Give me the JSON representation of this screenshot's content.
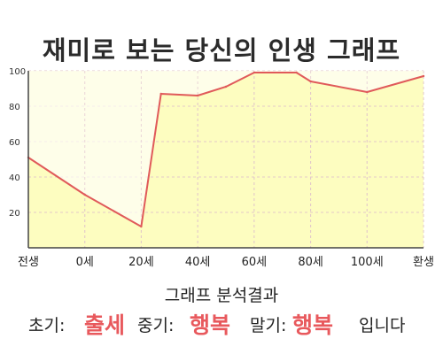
{
  "chart_data": {
    "type": "area",
    "title": "재미로 보는 당신의 인생 그래프",
    "x_labels": [
      "전생",
      "0세",
      "20세",
      "40세",
      "60세",
      "80세",
      "100세",
      "환생"
    ],
    "y_ticks": [
      20,
      40,
      60,
      80,
      100
    ],
    "ylim": [
      0,
      100
    ],
    "grid": true,
    "series": [
      {
        "values": [
          {
            "x": "전생",
            "y": 51
          },
          {
            "x": "0세",
            "y": 30
          },
          {
            "x": "20세",
            "y": 12
          },
          {
            "x": "27세",
            "y": 87
          },
          {
            "x": "40세",
            "y": 86
          },
          {
            "x": "50세",
            "y": 91
          },
          {
            "x": "60세",
            "y": 99
          },
          {
            "x": "75세",
            "y": 99
          },
          {
            "x": "80세",
            "y": 94
          },
          {
            "x": "100세",
            "y": 88
          },
          {
            "x": "환생",
            "y": 97
          }
        ]
      }
    ],
    "colors": {
      "line": "#e05a5a",
      "fill": "#fdfdc0",
      "grid": "#e2c9c9"
    }
  },
  "analysis": {
    "heading": "그래프 분석결과",
    "early_label": "초기:",
    "early_value": "출세",
    "mid_label": "중기:",
    "mid_value": "행복",
    "late_label": "말기:",
    "late_value": "행복",
    "ending": "입니다"
  }
}
